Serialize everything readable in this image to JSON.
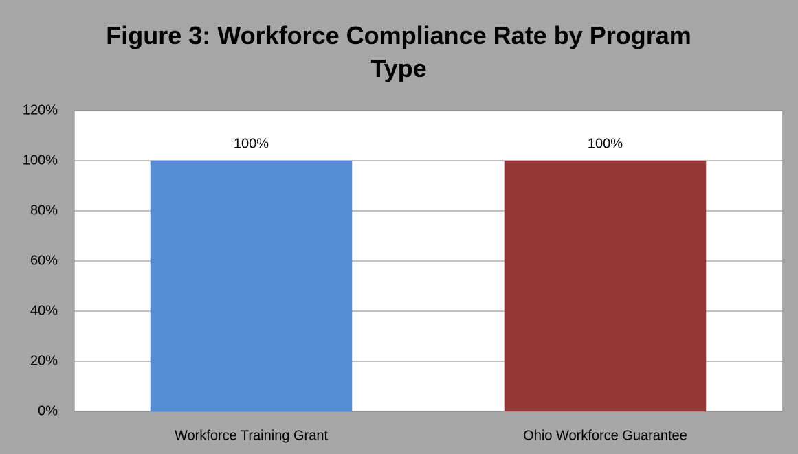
{
  "chart_data": {
    "type": "bar",
    "title": "Figure 3: Workforce Compliance Rate by Program Type",
    "categories": [
      "Workforce Training Grant",
      "Ohio Workforce Guarantee"
    ],
    "values": [
      100,
      100
    ],
    "value_labels": [
      "100%",
      "100%"
    ],
    "colors": [
      "#558ed5",
      "#953735"
    ],
    "ylim": [
      0,
      120
    ],
    "yticks": [
      {
        "value": 0,
        "label": "0%"
      },
      {
        "value": 20,
        "label": "20%"
      },
      {
        "value": 40,
        "label": "40%"
      },
      {
        "value": 60,
        "label": "60%"
      },
      {
        "value": 80,
        "label": "80%"
      },
      {
        "value": 100,
        "label": "100%"
      },
      {
        "value": 120,
        "label": "120%"
      }
    ],
    "grid": true
  }
}
